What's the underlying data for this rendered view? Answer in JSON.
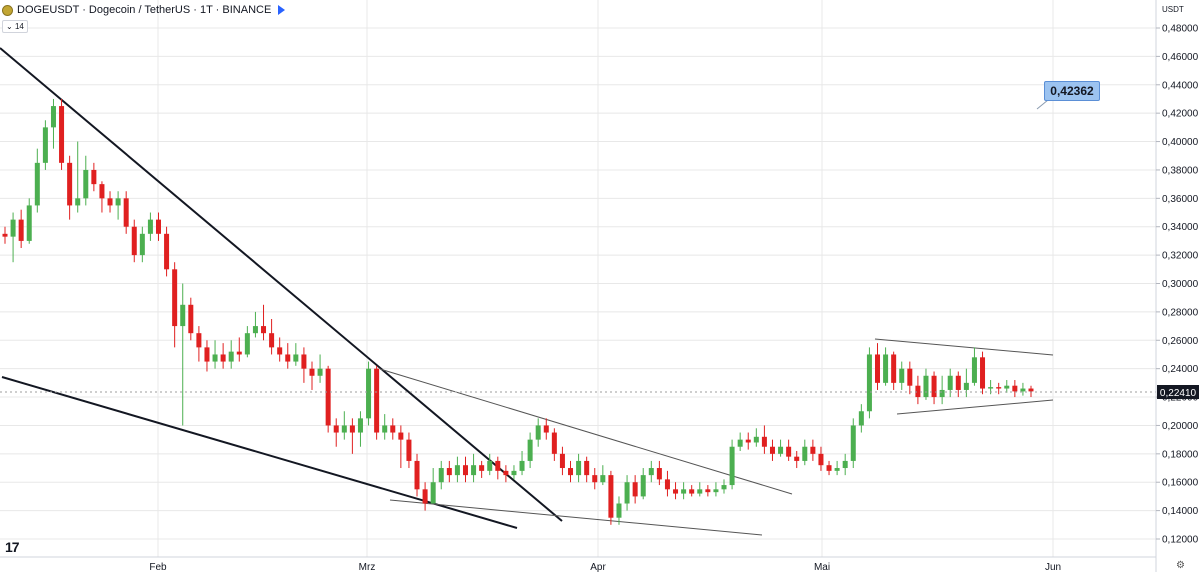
{
  "header": {
    "symbol_line": "DOGEUSDT · Dogecoin / TetherUS · 1T · BINANCE",
    "indicator_badge": "14"
  },
  "price_axis": {
    "unit": "USDT",
    "ticks": [
      "0,48000",
      "0,46000",
      "0,44000",
      "0,42000",
      "0,40000",
      "0,38000",
      "0,36000",
      "0,34000",
      "0,32000",
      "0,30000",
      "0,28000",
      "0,26000",
      "0,24000",
      "0,22000",
      "0,20000",
      "0,18000",
      "0,16000",
      "0,14000",
      "0,12000"
    ],
    "last_price_label": "0,22410"
  },
  "time_axis": {
    "labels": [
      "Feb",
      "Mrz",
      "Apr",
      "Mai",
      "Jun"
    ]
  },
  "callout": {
    "text": "0,42362"
  },
  "colors": {
    "up": "#4caf50",
    "down": "#e02020",
    "background": "#ffffff",
    "grid": "#e8e8e8",
    "callout_bg": "#9cc3f0"
  },
  "chart_data": {
    "type": "candlestick",
    "title": "DOGEUSDT · Dogecoin / TetherUS · 1T · BINANCE",
    "xlabel": "",
    "ylabel": "USDT",
    "ylim": [
      0.11,
      0.49
    ],
    "x_labels": [
      "Feb",
      "Mrz",
      "Apr",
      "Mai",
      "Jun"
    ],
    "candles": [
      [
        0.335,
        0.333,
        0.34,
        0.328
      ],
      [
        0.333,
        0.345,
        0.35,
        0.315
      ],
      [
        0.345,
        0.33,
        0.352,
        0.325
      ],
      [
        0.33,
        0.355,
        0.36,
        0.328
      ],
      [
        0.355,
        0.385,
        0.395,
        0.35
      ],
      [
        0.385,
        0.41,
        0.415,
        0.38
      ],
      [
        0.41,
        0.425,
        0.43,
        0.395
      ],
      [
        0.425,
        0.385,
        0.43,
        0.38
      ],
      [
        0.385,
        0.355,
        0.39,
        0.345
      ],
      [
        0.355,
        0.36,
        0.4,
        0.35
      ],
      [
        0.36,
        0.38,
        0.39,
        0.355
      ],
      [
        0.38,
        0.37,
        0.385,
        0.365
      ],
      [
        0.37,
        0.36,
        0.372,
        0.35
      ],
      [
        0.36,
        0.355,
        0.365,
        0.35
      ],
      [
        0.355,
        0.36,
        0.365,
        0.345
      ],
      [
        0.36,
        0.34,
        0.365,
        0.335
      ],
      [
        0.34,
        0.32,
        0.345,
        0.315
      ],
      [
        0.32,
        0.335,
        0.34,
        0.315
      ],
      [
        0.335,
        0.345,
        0.35,
        0.33
      ],
      [
        0.345,
        0.335,
        0.35,
        0.33
      ],
      [
        0.335,
        0.31,
        0.34,
        0.305
      ],
      [
        0.31,
        0.27,
        0.315,
        0.255
      ],
      [
        0.27,
        0.285,
        0.3,
        0.2
      ],
      [
        0.285,
        0.265,
        0.29,
        0.26
      ],
      [
        0.265,
        0.255,
        0.27,
        0.245
      ],
      [
        0.255,
        0.245,
        0.26,
        0.238
      ],
      [
        0.245,
        0.25,
        0.26,
        0.24
      ],
      [
        0.25,
        0.245,
        0.258,
        0.24
      ],
      [
        0.245,
        0.252,
        0.26,
        0.24
      ],
      [
        0.252,
        0.25,
        0.262,
        0.245
      ],
      [
        0.25,
        0.265,
        0.27,
        0.248
      ],
      [
        0.265,
        0.27,
        0.28,
        0.262
      ],
      [
        0.27,
        0.265,
        0.285,
        0.26
      ],
      [
        0.265,
        0.255,
        0.275,
        0.25
      ],
      [
        0.255,
        0.25,
        0.262,
        0.245
      ],
      [
        0.25,
        0.245,
        0.258,
        0.24
      ],
      [
        0.245,
        0.25,
        0.258,
        0.242
      ],
      [
        0.25,
        0.24,
        0.255,
        0.23
      ],
      [
        0.24,
        0.235,
        0.245,
        0.225
      ],
      [
        0.235,
        0.24,
        0.25,
        0.23
      ],
      [
        0.24,
        0.2,
        0.242,
        0.195
      ],
      [
        0.2,
        0.195,
        0.205,
        0.185
      ],
      [
        0.195,
        0.2,
        0.21,
        0.19
      ],
      [
        0.2,
        0.195,
        0.205,
        0.18
      ],
      [
        0.195,
        0.205,
        0.21,
        0.185
      ],
      [
        0.205,
        0.24,
        0.245,
        0.2
      ],
      [
        0.24,
        0.195,
        0.242,
        0.19
      ],
      [
        0.195,
        0.2,
        0.208,
        0.19
      ],
      [
        0.2,
        0.195,
        0.205,
        0.19
      ],
      [
        0.195,
        0.19,
        0.2,
        0.17
      ],
      [
        0.19,
        0.175,
        0.195,
        0.17
      ],
      [
        0.175,
        0.155,
        0.18,
        0.15
      ],
      [
        0.155,
        0.145,
        0.16,
        0.14
      ],
      [
        0.145,
        0.16,
        0.17,
        0.145
      ],
      [
        0.16,
        0.17,
        0.175,
        0.155
      ],
      [
        0.17,
        0.165,
        0.175,
        0.16
      ],
      [
        0.165,
        0.172,
        0.178,
        0.16
      ],
      [
        0.172,
        0.165,
        0.178,
        0.16
      ],
      [
        0.165,
        0.172,
        0.18,
        0.16
      ],
      [
        0.172,
        0.168,
        0.175,
        0.163
      ],
      [
        0.168,
        0.175,
        0.18,
        0.165
      ],
      [
        0.175,
        0.168,
        0.178,
        0.162
      ],
      [
        0.168,
        0.165,
        0.172,
        0.16
      ],
      [
        0.165,
        0.168,
        0.172,
        0.162
      ],
      [
        0.168,
        0.175,
        0.182,
        0.165
      ],
      [
        0.175,
        0.19,
        0.195,
        0.17
      ],
      [
        0.19,
        0.2,
        0.205,
        0.185
      ],
      [
        0.2,
        0.195,
        0.205,
        0.19
      ],
      [
        0.195,
        0.18,
        0.198,
        0.175
      ],
      [
        0.18,
        0.17,
        0.185,
        0.165
      ],
      [
        0.17,
        0.165,
        0.175,
        0.16
      ],
      [
        0.165,
        0.175,
        0.18,
        0.16
      ],
      [
        0.175,
        0.165,
        0.178,
        0.16
      ],
      [
        0.165,
        0.16,
        0.17,
        0.155
      ],
      [
        0.16,
        0.165,
        0.172,
        0.158
      ],
      [
        0.165,
        0.135,
        0.168,
        0.13
      ],
      [
        0.135,
        0.145,
        0.15,
        0.13
      ],
      [
        0.145,
        0.16,
        0.165,
        0.14
      ],
      [
        0.16,
        0.15,
        0.165,
        0.145
      ],
      [
        0.15,
        0.165,
        0.17,
        0.148
      ],
      [
        0.165,
        0.17,
        0.175,
        0.16
      ],
      [
        0.17,
        0.162,
        0.175,
        0.158
      ],
      [
        0.162,
        0.155,
        0.168,
        0.15
      ],
      [
        0.155,
        0.152,
        0.16,
        0.148
      ],
      [
        0.152,
        0.155,
        0.16,
        0.148
      ],
      [
        0.155,
        0.152,
        0.158,
        0.15
      ],
      [
        0.152,
        0.155,
        0.16,
        0.15
      ],
      [
        0.155,
        0.153,
        0.158,
        0.15
      ],
      [
        0.153,
        0.155,
        0.16,
        0.15
      ],
      [
        0.155,
        0.158,
        0.162,
        0.152
      ],
      [
        0.158,
        0.185,
        0.19,
        0.155
      ],
      [
        0.185,
        0.19,
        0.195,
        0.182
      ],
      [
        0.19,
        0.188,
        0.195,
        0.183
      ],
      [
        0.188,
        0.192,
        0.198,
        0.185
      ],
      [
        0.192,
        0.185,
        0.2,
        0.18
      ],
      [
        0.185,
        0.18,
        0.19,
        0.175
      ],
      [
        0.18,
        0.185,
        0.19,
        0.178
      ],
      [
        0.185,
        0.178,
        0.19,
        0.175
      ],
      [
        0.178,
        0.175,
        0.182,
        0.17
      ],
      [
        0.175,
        0.185,
        0.19,
        0.172
      ],
      [
        0.185,
        0.18,
        0.19,
        0.175
      ],
      [
        0.18,
        0.172,
        0.185,
        0.168
      ],
      [
        0.172,
        0.168,
        0.175,
        0.165
      ],
      [
        0.168,
        0.17,
        0.175,
        0.165
      ],
      [
        0.17,
        0.175,
        0.18,
        0.165
      ],
      [
        0.175,
        0.2,
        0.205,
        0.17
      ],
      [
        0.2,
        0.21,
        0.215,
        0.195
      ],
      [
        0.21,
        0.25,
        0.255,
        0.205
      ],
      [
        0.25,
        0.23,
        0.258,
        0.225
      ],
      [
        0.23,
        0.25,
        0.255,
        0.228
      ],
      [
        0.25,
        0.23,
        0.252,
        0.225
      ],
      [
        0.23,
        0.24,
        0.245,
        0.225
      ],
      [
        0.24,
        0.228,
        0.245,
        0.222
      ],
      [
        0.228,
        0.22,
        0.235,
        0.215
      ],
      [
        0.22,
        0.235,
        0.24,
        0.218
      ],
      [
        0.235,
        0.22,
        0.238,
        0.215
      ],
      [
        0.22,
        0.225,
        0.235,
        0.215
      ],
      [
        0.225,
        0.235,
        0.24,
        0.22
      ],
      [
        0.235,
        0.225,
        0.238,
        0.22
      ],
      [
        0.225,
        0.23,
        0.24,
        0.22
      ],
      [
        0.23,
        0.248,
        0.255,
        0.228
      ],
      [
        0.248,
        0.226,
        0.252,
        0.222
      ],
      [
        0.226,
        0.227,
        0.232,
        0.222
      ],
      [
        0.227,
        0.226,
        0.23,
        0.222
      ],
      [
        0.226,
        0.228,
        0.232,
        0.223
      ],
      [
        0.228,
        0.224,
        0.232,
        0.22
      ],
      [
        0.224,
        0.226,
        0.23,
        0.221
      ],
      [
        0.226,
        0.224,
        0.228,
        0.22
      ]
    ]
  }
}
